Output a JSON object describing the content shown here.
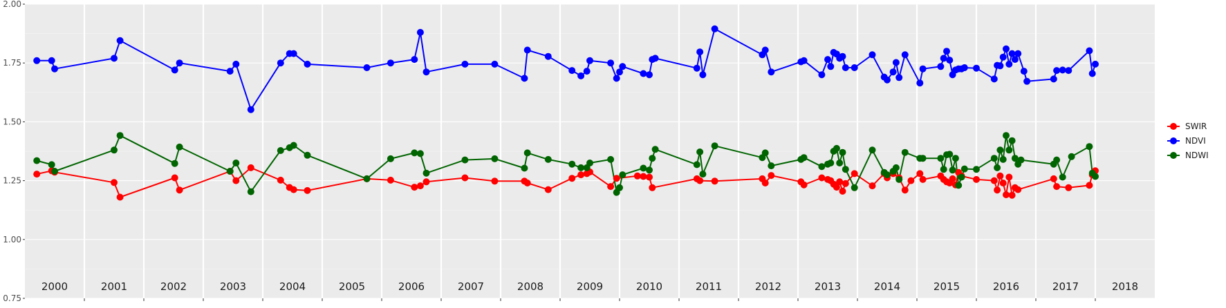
{
  "chart_data": {
    "type": "line",
    "title": "",
    "xlabel": "",
    "ylabel": "",
    "xlim": [
      2000.0,
      2019.0
    ],
    "ylim": [
      0.75,
      2.0
    ],
    "yticks": [
      0.75,
      1.0,
      1.25,
      1.5,
      1.75,
      2.0
    ],
    "ytick_labels": [
      "0.75",
      "1.00",
      "1.25",
      "1.50",
      "1.75",
      "2.00"
    ],
    "year_labels": [
      "2000",
      "2001",
      "2002",
      "2003",
      "2004",
      "2005",
      "2006",
      "2007",
      "2008",
      "2009",
      "2010",
      "2011",
      "2012",
      "2013",
      "2014",
      "2015",
      "2016",
      "2017",
      "2018"
    ],
    "year_boundaries": [
      2001,
      2002,
      2003,
      2004,
      2005,
      2006,
      2007,
      2008,
      2009,
      2010,
      2011,
      2012,
      2013,
      2014,
      2015,
      2016,
      2017,
      2018
    ],
    "grid": true,
    "background": "#ebebeb",
    "legend_position": "right",
    "series": [
      {
        "name": "SWIR",
        "color": "#ff0000",
        "points": [
          [
            2000.2,
            1.278
          ],
          [
            2000.45,
            1.292
          ],
          [
            2000.5,
            1.286
          ],
          [
            2001.5,
            1.242
          ],
          [
            2001.6,
            1.18
          ],
          [
            2002.52,
            1.262
          ],
          [
            2002.6,
            1.21
          ],
          [
            2003.45,
            1.29
          ],
          [
            2003.55,
            1.25
          ],
          [
            2003.8,
            1.305
          ],
          [
            2004.3,
            1.252
          ],
          [
            2004.45,
            1.221
          ],
          [
            2004.52,
            1.212
          ],
          [
            2004.75,
            1.208
          ],
          [
            2005.75,
            1.258
          ],
          [
            2006.15,
            1.252
          ],
          [
            2006.55,
            1.222
          ],
          [
            2006.65,
            1.228
          ],
          [
            2006.75,
            1.245
          ],
          [
            2007.4,
            1.262
          ],
          [
            2007.9,
            1.248
          ],
          [
            2008.4,
            1.248
          ],
          [
            2008.45,
            1.24
          ],
          [
            2008.8,
            1.212
          ],
          [
            2009.2,
            1.26
          ],
          [
            2009.35,
            1.275
          ],
          [
            2009.45,
            1.28
          ],
          [
            2009.5,
            1.287
          ],
          [
            2009.85,
            1.225
          ],
          [
            2009.95,
            1.26
          ],
          [
            2010.3,
            1.27
          ],
          [
            2010.4,
            1.268
          ],
          [
            2010.5,
            1.265
          ],
          [
            2010.55,
            1.22
          ],
          [
            2011.3,
            1.258
          ],
          [
            2011.35,
            1.25
          ],
          [
            2011.6,
            1.248
          ],
          [
            2012.4,
            1.258
          ],
          [
            2012.45,
            1.24
          ],
          [
            2012.55,
            1.272
          ],
          [
            2013.05,
            1.245
          ],
          [
            2013.1,
            1.232
          ],
          [
            2013.4,
            1.262
          ],
          [
            2013.5,
            1.255
          ],
          [
            2013.55,
            1.25
          ],
          [
            2013.6,
            1.235
          ],
          [
            2013.65,
            1.222
          ],
          [
            2013.7,
            1.245
          ],
          [
            2013.75,
            1.205
          ],
          [
            2013.8,
            1.238
          ],
          [
            2013.95,
            1.28
          ],
          [
            2014.25,
            1.228
          ],
          [
            2014.45,
            1.28
          ],
          [
            2014.5,
            1.262
          ],
          [
            2014.6,
            1.28
          ],
          [
            2014.7,
            1.262
          ],
          [
            2014.8,
            1.21
          ],
          [
            2014.9,
            1.25
          ],
          [
            2015.05,
            1.28
          ],
          [
            2015.1,
            1.255
          ],
          [
            2015.4,
            1.27
          ],
          [
            2015.45,
            1.255
          ],
          [
            2015.5,
            1.245
          ],
          [
            2015.55,
            1.24
          ],
          [
            2015.6,
            1.258
          ],
          [
            2015.65,
            1.232
          ],
          [
            2015.7,
            1.285
          ],
          [
            2015.75,
            1.27
          ],
          [
            2016.0,
            1.255
          ],
          [
            2016.3,
            1.25
          ],
          [
            2016.35,
            1.21
          ],
          [
            2016.4,
            1.27
          ],
          [
            2016.45,
            1.24
          ],
          [
            2016.5,
            1.19
          ],
          [
            2016.55,
            1.265
          ],
          [
            2016.6,
            1.188
          ],
          [
            2016.65,
            1.22
          ],
          [
            2016.7,
            1.212
          ],
          [
            2017.3,
            1.258
          ],
          [
            2017.35,
            1.225
          ],
          [
            2017.55,
            1.22
          ],
          [
            2017.9,
            1.23
          ],
          [
            2017.95,
            1.275
          ],
          [
            2018.0,
            1.292
          ]
        ]
      },
      {
        "name": "NDVI",
        "color": "#0000ff",
        "points": [
          [
            2000.2,
            1.76
          ],
          [
            2000.45,
            1.76
          ],
          [
            2000.5,
            1.725
          ],
          [
            2001.5,
            1.77
          ],
          [
            2001.6,
            1.845
          ],
          [
            2002.52,
            1.72
          ],
          [
            2002.6,
            1.75
          ],
          [
            2003.45,
            1.715
          ],
          [
            2003.55,
            1.745
          ],
          [
            2003.8,
            1.552
          ],
          [
            2004.3,
            1.75
          ],
          [
            2004.45,
            1.79
          ],
          [
            2004.52,
            1.79
          ],
          [
            2004.75,
            1.745
          ],
          [
            2005.75,
            1.73
          ],
          [
            2006.15,
            1.75
          ],
          [
            2006.55,
            1.765
          ],
          [
            2006.65,
            1.88
          ],
          [
            2006.75,
            1.712
          ],
          [
            2007.4,
            1.745
          ],
          [
            2007.9,
            1.745
          ],
          [
            2008.4,
            1.685
          ],
          [
            2008.45,
            1.805
          ],
          [
            2008.8,
            1.778
          ],
          [
            2009.2,
            1.718
          ],
          [
            2009.35,
            1.695
          ],
          [
            2009.45,
            1.715
          ],
          [
            2009.5,
            1.76
          ],
          [
            2009.85,
            1.75
          ],
          [
            2009.95,
            1.685
          ],
          [
            2010.0,
            1.712
          ],
          [
            2010.05,
            1.735
          ],
          [
            2010.4,
            1.705
          ],
          [
            2010.5,
            1.7
          ],
          [
            2010.55,
            1.765
          ],
          [
            2010.6,
            1.77
          ],
          [
            2011.3,
            1.728
          ],
          [
            2011.35,
            1.797
          ],
          [
            2011.4,
            1.7
          ],
          [
            2011.6,
            1.895
          ],
          [
            2012.4,
            1.785
          ],
          [
            2012.45,
            1.805
          ],
          [
            2012.55,
            1.712
          ],
          [
            2013.05,
            1.755
          ],
          [
            2013.1,
            1.76
          ],
          [
            2013.4,
            1.7
          ],
          [
            2013.5,
            1.765
          ],
          [
            2013.55,
            1.735
          ],
          [
            2013.6,
            1.795
          ],
          [
            2013.65,
            1.788
          ],
          [
            2013.7,
            1.77
          ],
          [
            2013.75,
            1.778
          ],
          [
            2013.8,
            1.73
          ],
          [
            2013.95,
            1.73
          ],
          [
            2014.25,
            1.785
          ],
          [
            2014.45,
            1.69
          ],
          [
            2014.5,
            1.678
          ],
          [
            2014.6,
            1.712
          ],
          [
            2014.65,
            1.752
          ],
          [
            2014.7,
            1.688
          ],
          [
            2014.8,
            1.785
          ],
          [
            2015.05,
            1.665
          ],
          [
            2015.1,
            1.725
          ],
          [
            2015.4,
            1.735
          ],
          [
            2015.45,
            1.77
          ],
          [
            2015.5,
            1.8
          ],
          [
            2015.55,
            1.762
          ],
          [
            2015.6,
            1.7
          ],
          [
            2015.65,
            1.72
          ],
          [
            2015.7,
            1.725
          ],
          [
            2015.75,
            1.725
          ],
          [
            2015.8,
            1.73
          ],
          [
            2016.0,
            1.728
          ],
          [
            2016.3,
            1.682
          ],
          [
            2016.35,
            1.74
          ],
          [
            2016.4,
            1.738
          ],
          [
            2016.45,
            1.775
          ],
          [
            2016.5,
            1.81
          ],
          [
            2016.55,
            1.745
          ],
          [
            2016.6,
            1.79
          ],
          [
            2016.65,
            1.765
          ],
          [
            2016.7,
            1.79
          ],
          [
            2016.8,
            1.715
          ],
          [
            2016.85,
            1.672
          ],
          [
            2017.3,
            1.682
          ],
          [
            2017.35,
            1.718
          ],
          [
            2017.45,
            1.72
          ],
          [
            2017.55,
            1.718
          ],
          [
            2017.9,
            1.802
          ],
          [
            2017.95,
            1.705
          ],
          [
            2018.0,
            1.745
          ]
        ]
      },
      {
        "name": "NDWI",
        "color": "#006400",
        "points": [
          [
            2000.2,
            1.335
          ],
          [
            2000.45,
            1.318
          ],
          [
            2000.5,
            1.29
          ],
          [
            2001.5,
            1.38
          ],
          [
            2001.6,
            1.442
          ],
          [
            2002.52,
            1.323
          ],
          [
            2002.6,
            1.393
          ],
          [
            2003.45,
            1.29
          ],
          [
            2003.55,
            1.325
          ],
          [
            2003.8,
            1.203
          ],
          [
            2004.3,
            1.378
          ],
          [
            2004.45,
            1.39
          ],
          [
            2004.52,
            1.4
          ],
          [
            2004.75,
            1.358
          ],
          [
            2005.75,
            1.258
          ],
          [
            2006.15,
            1.343
          ],
          [
            2006.55,
            1.368
          ],
          [
            2006.65,
            1.365
          ],
          [
            2006.75,
            1.282
          ],
          [
            2007.4,
            1.338
          ],
          [
            2007.9,
            1.343
          ],
          [
            2008.4,
            1.303
          ],
          [
            2008.45,
            1.368
          ],
          [
            2008.8,
            1.34
          ],
          [
            2009.2,
            1.32
          ],
          [
            2009.35,
            1.305
          ],
          [
            2009.45,
            1.305
          ],
          [
            2009.5,
            1.325
          ],
          [
            2009.85,
            1.34
          ],
          [
            2009.95,
            1.2
          ],
          [
            2010.0,
            1.22
          ],
          [
            2010.05,
            1.275
          ],
          [
            2010.4,
            1.303
          ],
          [
            2010.5,
            1.295
          ],
          [
            2010.55,
            1.345
          ],
          [
            2010.6,
            1.383
          ],
          [
            2011.3,
            1.318
          ],
          [
            2011.35,
            1.372
          ],
          [
            2011.4,
            1.278
          ],
          [
            2011.6,
            1.398
          ],
          [
            2012.4,
            1.348
          ],
          [
            2012.45,
            1.368
          ],
          [
            2012.55,
            1.313
          ],
          [
            2013.05,
            1.34
          ],
          [
            2013.1,
            1.348
          ],
          [
            2013.4,
            1.31
          ],
          [
            2013.5,
            1.32
          ],
          [
            2013.55,
            1.325
          ],
          [
            2013.6,
            1.375
          ],
          [
            2013.65,
            1.387
          ],
          [
            2013.7,
            1.325
          ],
          [
            2013.75,
            1.37
          ],
          [
            2013.8,
            1.298
          ],
          [
            2013.95,
            1.22
          ],
          [
            2014.25,
            1.38
          ],
          [
            2014.45,
            1.285
          ],
          [
            2014.5,
            1.275
          ],
          [
            2014.6,
            1.29
          ],
          [
            2014.65,
            1.305
          ],
          [
            2014.7,
            1.255
          ],
          [
            2014.8,
            1.37
          ],
          [
            2015.05,
            1.345
          ],
          [
            2015.1,
            1.345
          ],
          [
            2015.4,
            1.345
          ],
          [
            2015.45,
            1.298
          ],
          [
            2015.5,
            1.36
          ],
          [
            2015.55,
            1.362
          ],
          [
            2015.6,
            1.295
          ],
          [
            2015.65,
            1.345
          ],
          [
            2015.7,
            1.23
          ],
          [
            2015.75,
            1.265
          ],
          [
            2015.8,
            1.3
          ],
          [
            2016.0,
            1.298
          ],
          [
            2016.3,
            1.345
          ],
          [
            2016.35,
            1.305
          ],
          [
            2016.4,
            1.38
          ],
          [
            2016.45,
            1.34
          ],
          [
            2016.5,
            1.442
          ],
          [
            2016.55,
            1.38
          ],
          [
            2016.6,
            1.42
          ],
          [
            2016.65,
            1.345
          ],
          [
            2016.7,
            1.32
          ],
          [
            2016.75,
            1.338
          ],
          [
            2017.3,
            1.32
          ],
          [
            2017.35,
            1.338
          ],
          [
            2017.45,
            1.265
          ],
          [
            2017.6,
            1.352
          ],
          [
            2017.9,
            1.395
          ],
          [
            2017.95,
            1.282
          ],
          [
            2018.0,
            1.268
          ]
        ]
      }
    ]
  }
}
